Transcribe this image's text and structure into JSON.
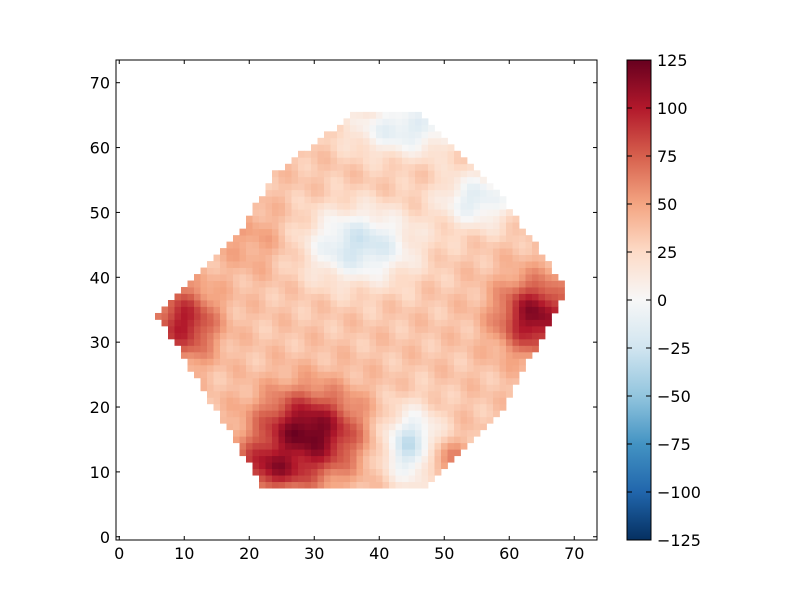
{
  "chart_data": {
    "type": "heatmap",
    "title": "",
    "xlabel": "",
    "ylabel": "",
    "xlim": [
      -0.5,
      73.5
    ],
    "ylim": [
      -0.5,
      73.5
    ],
    "x_ticks": [
      0,
      10,
      20,
      30,
      40,
      50,
      60,
      70
    ],
    "y_ticks": [
      0,
      10,
      20,
      30,
      40,
      50,
      60,
      70
    ],
    "grid": false,
    "colormap": "RdBu_r",
    "colorbar": {
      "vmin": -125,
      "vmax": 125,
      "ticks": [
        125,
        100,
        75,
        50,
        25,
        0,
        -25,
        -50,
        -75,
        -100,
        -125
      ],
      "tick_labels": [
        "125",
        "100",
        "75",
        "50",
        "25",
        "0",
        "−25",
        "−50",
        "−75",
        "−100",
        "−125"
      ],
      "colors": [
        "#053061",
        "#2166ac",
        "#4393c3",
        "#92c5de",
        "#d1e5f0",
        "#f7f7f7",
        "#fddbc7",
        "#f4a582",
        "#d6604d",
        "#b2182b",
        "#67001f"
      ]
    },
    "valid_region": {
      "x_range": [
        6,
        69
      ],
      "y_range": [
        8,
        66
      ],
      "shape": "hexagon",
      "vertices": [
        [
          6,
          34
        ],
        [
          22,
          8
        ],
        [
          48,
          8
        ],
        [
          58,
          18
        ],
        [
          69,
          38
        ],
        [
          57,
          55
        ],
        [
          46,
          66
        ],
        [
          37,
          66
        ],
        [
          24,
          56
        ],
        [
          18,
          46
        ]
      ]
    },
    "features": [
      {
        "name": "strong-positive-lower-left",
        "x": 29,
        "y": 16,
        "value": 125,
        "sx": 5.5,
        "sy": 4.5
      },
      {
        "name": "strong-positive-lower-left-tail",
        "x": 24,
        "y": 11,
        "value": 110,
        "sx": 4,
        "sy": 2.5
      },
      {
        "name": "positive-left-edge",
        "x": 10,
        "y": 33,
        "value": 100,
        "sx": 3.5,
        "sy": 4
      },
      {
        "name": "strong-positive-right-edge",
        "x": 64,
        "y": 34,
        "value": 115,
        "sx": 4,
        "sy": 4
      },
      {
        "name": "negative-upper-center",
        "x": 37,
        "y": 45,
        "value": -25,
        "sx": 6,
        "sy": 4
      },
      {
        "name": "negative-lower-center",
        "x": 45,
        "y": 14,
        "value": -30,
        "sx": 3,
        "sy": 4
      },
      {
        "name": "negative-top",
        "x": 44,
        "y": 63,
        "value": -15,
        "sx": 6,
        "sy": 3
      },
      {
        "name": "negative-right-upper",
        "x": 55,
        "y": 52,
        "value": -15,
        "sx": 4,
        "sy": 3
      },
      {
        "name": "positive-left-mid",
        "x": 20,
        "y": 46,
        "value": 50,
        "sx": 4,
        "sy": 4
      },
      {
        "name": "positive-lower-right",
        "x": 51,
        "y": 12,
        "value": 60,
        "sx": 2.5,
        "sy": 2
      }
    ],
    "background_value": 35
  }
}
